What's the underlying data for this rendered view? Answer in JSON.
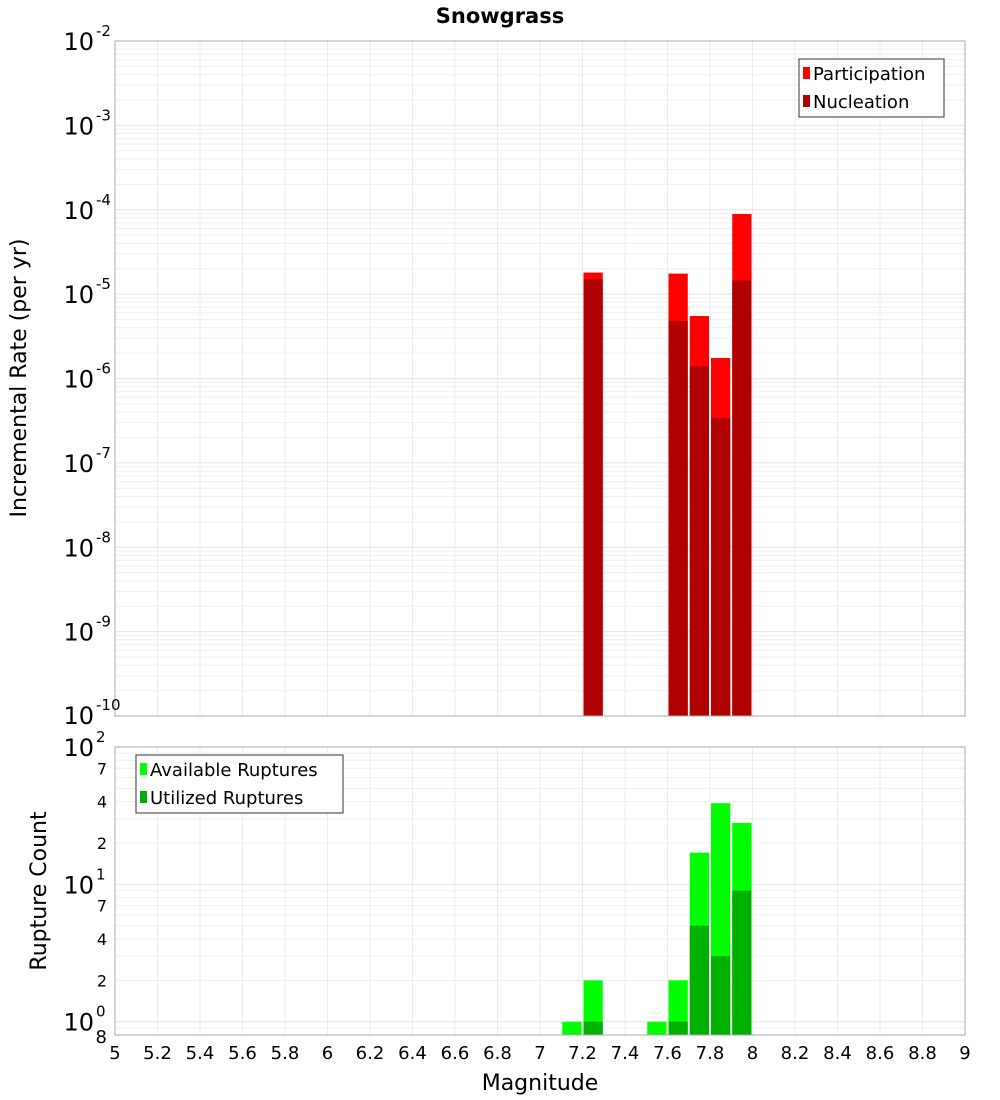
{
  "chart_data": [
    {
      "type": "bar",
      "title": "Snowgrass",
      "xlabel": "Magnitude",
      "ylabel": "Incremental Rate (per yr)",
      "yscale": "log",
      "xlim": [
        5,
        9
      ],
      "ylim": [
        1e-10,
        0.01
      ],
      "ytick_exponents": [
        -10,
        -9,
        -8,
        -7,
        -6,
        -5,
        -4,
        -3,
        -2
      ],
      "grid": true,
      "legend_position": "top-right",
      "bar_width": 0.1,
      "x": [
        7.25,
        7.65,
        7.75,
        7.85,
        7.95
      ],
      "series": [
        {
          "name": "Participation",
          "color": "#ff0000",
          "values": [
            1.8e-05,
            1.75e-05,
            5.5e-06,
            1.75e-06,
            8.9e-05
          ]
        },
        {
          "name": "Nucleation",
          "color": "#b00000",
          "values": [
            1.5e-05,
            4.8e-06,
            1.4e-06,
            3.4e-07,
            1.45e-05
          ]
        }
      ]
    },
    {
      "type": "bar",
      "xlabel": "Magnitude",
      "ylabel": "Rupture Count",
      "yscale": "log",
      "xlim": [
        5,
        9
      ],
      "ylim": [
        0.8,
        100
      ],
      "xticks": [
        "5",
        "5.2",
        "5.4",
        "5.6",
        "5.8",
        "6",
        "6.2",
        "6.4",
        "6.6",
        "6.8",
        "7",
        "7.2",
        "7.4",
        "7.6",
        "7.8",
        "8",
        "8.2",
        "8.4",
        "8.6",
        "8.8",
        "9"
      ],
      "ytick_exponents": [
        0,
        1,
        2
      ],
      "yminor_labels": [
        "7",
        "4",
        "2"
      ],
      "ybottom_label": "8",
      "grid": true,
      "legend_position": "top-left",
      "bar_width": 0.1,
      "x": [
        7.15,
        7.25,
        7.55,
        7.65,
        7.75,
        7.85,
        7.95
      ],
      "series": [
        {
          "name": "Available Ruptures",
          "color": "#00ff00",
          "values": [
            1,
            2,
            1,
            2,
            17,
            39,
            28
          ]
        },
        {
          "name": "Utilized Ruptures",
          "color": "#00b000",
          "values": [
            0,
            1,
            0,
            1,
            5,
            3,
            9
          ]
        }
      ]
    }
  ]
}
